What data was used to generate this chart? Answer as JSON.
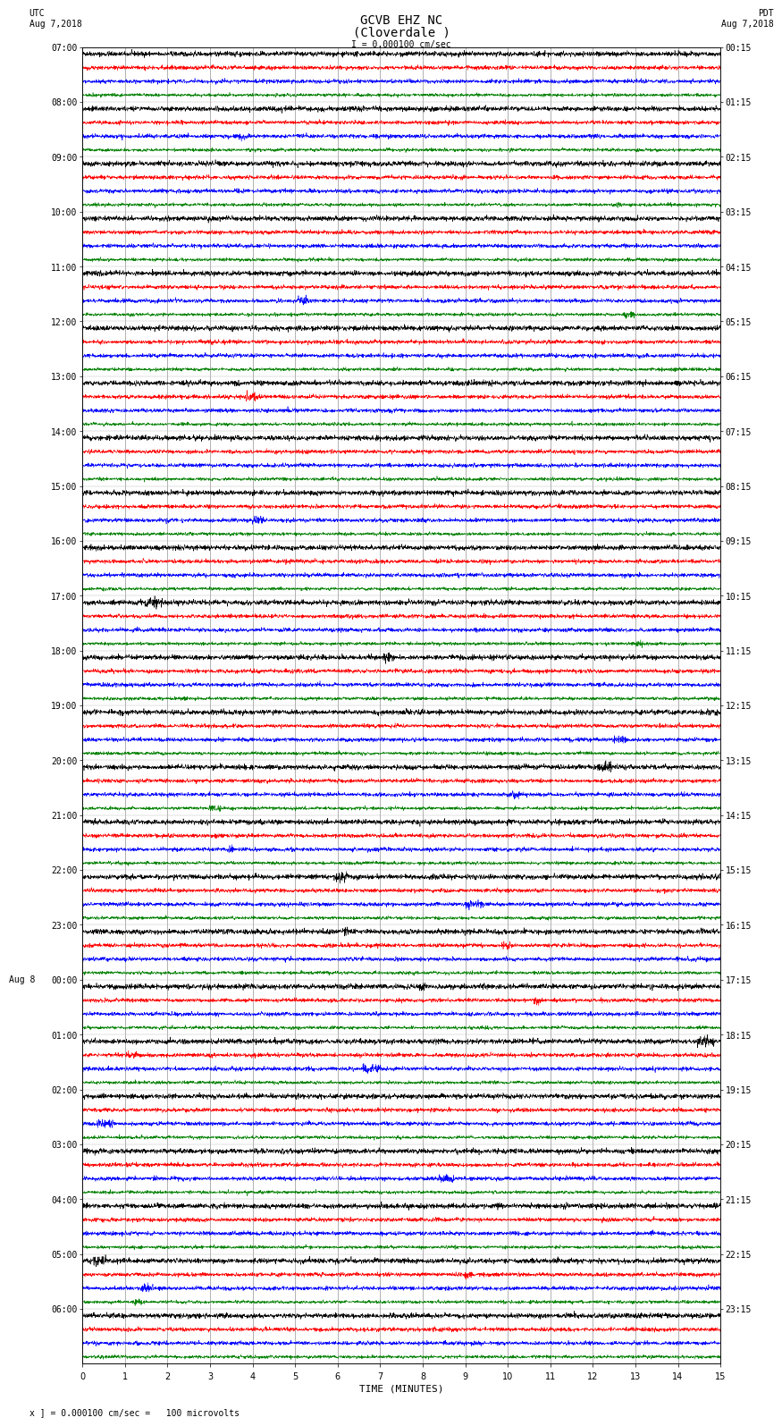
{
  "title_line1": "GCVB EHZ NC",
  "title_line2": "(Cloverdale )",
  "scale_text": "I = 0.000100 cm/sec",
  "utc_label": "UTC",
  "utc_date": "Aug 7,2018",
  "pdt_label": "PDT",
  "pdt_date": "Aug 7,2018",
  "aug8_label": "Aug 8",
  "footer_text": "x ] = 0.000100 cm/sec =   100 microvolts",
  "xlabel": "TIME (MINUTES)",
  "left_hour_labels": [
    "07:00",
    "08:00",
    "09:00",
    "10:00",
    "11:00",
    "12:00",
    "13:00",
    "14:00",
    "15:00",
    "16:00",
    "17:00",
    "18:00",
    "19:00",
    "20:00",
    "21:00",
    "22:00",
    "23:00",
    "00:00",
    "01:00",
    "02:00",
    "03:00",
    "04:00",
    "05:00",
    "06:00"
  ],
  "right_hour_labels": [
    "00:15",
    "01:15",
    "02:15",
    "03:15",
    "04:15",
    "05:15",
    "06:15",
    "07:15",
    "08:15",
    "09:15",
    "10:15",
    "11:15",
    "12:15",
    "13:15",
    "14:15",
    "15:15",
    "16:15",
    "17:15",
    "18:15",
    "19:15",
    "20:15",
    "21:15",
    "22:15",
    "23:15"
  ],
  "aug8_hour_index": 17,
  "trace_colors": [
    "black",
    "red",
    "blue",
    "green"
  ],
  "bg_color": "white",
  "grid_color": "#777777",
  "xmin": 0,
  "xmax": 15,
  "xticks": [
    0,
    1,
    2,
    3,
    4,
    5,
    6,
    7,
    8,
    9,
    10,
    11,
    12,
    13,
    14,
    15
  ],
  "num_hours": 24,
  "traces_per_hour": 4,
  "noise_amplitude": [
    0.28,
    0.22,
    0.22,
    0.18
  ],
  "title_fontsize": 10,
  "label_fontsize": 8,
  "tick_fontsize": 7,
  "axis_label_fontsize": 8
}
